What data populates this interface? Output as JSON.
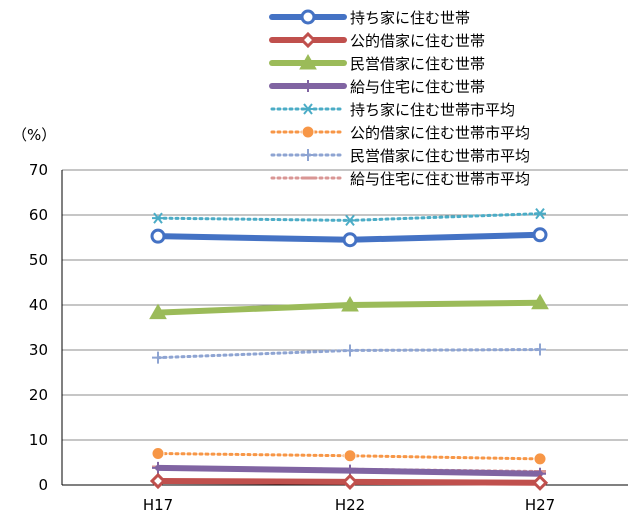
{
  "chart_data": {
    "type": "line",
    "categories": [
      "H17",
      "H22",
      "H27"
    ],
    "ylim": [
      0,
      70
    ],
    "yticks": [
      0,
      10,
      20,
      30,
      40,
      50,
      60,
      70
    ],
    "unit_label": "（%）",
    "grid": true,
    "legend_position": "top-right",
    "series": [
      {
        "name": "持ち家に住む世帯",
        "values": [
          55.3,
          54.5,
          55.6
        ],
        "color": "#4472C4",
        "style": "solid-thick",
        "marker": "circle"
      },
      {
        "name": "公的借家に住む世帯",
        "values": [
          0.9,
          0.7,
          0.5
        ],
        "color": "#C0504D",
        "style": "solid-thick",
        "marker": "diamond"
      },
      {
        "name": "民営借家に住む世帯",
        "values": [
          38.3,
          40.0,
          40.5
        ],
        "color": "#9BBB59",
        "style": "solid-thick",
        "marker": "triangle"
      },
      {
        "name": "給与住宅に住む世帯",
        "values": [
          3.8,
          3.2,
          2.5
        ],
        "color": "#8064A2",
        "style": "solid-thick",
        "marker": "plus"
      },
      {
        "name": "持ち家に住む世帯市平均",
        "values": [
          59.3,
          58.8,
          60.3
        ],
        "color": "#4BACC6",
        "style": "dotted",
        "marker": "asterisk"
      },
      {
        "name": "公的借家に住む世帯市平均",
        "values": [
          7.0,
          6.5,
          5.8
        ],
        "color": "#F79646",
        "style": "dotted",
        "marker": "circle-filled"
      },
      {
        "name": "民営借家に住む世帯市平均",
        "values": [
          28.3,
          29.9,
          30.1
        ],
        "color": "#8EA4D2",
        "style": "dotted",
        "marker": "plus"
      },
      {
        "name": "給与住宅に住む世帯市平均",
        "values": [
          4.0,
          3.5,
          3.0
        ],
        "color": "#D99694",
        "style": "dotted",
        "marker": "dash"
      }
    ]
  }
}
